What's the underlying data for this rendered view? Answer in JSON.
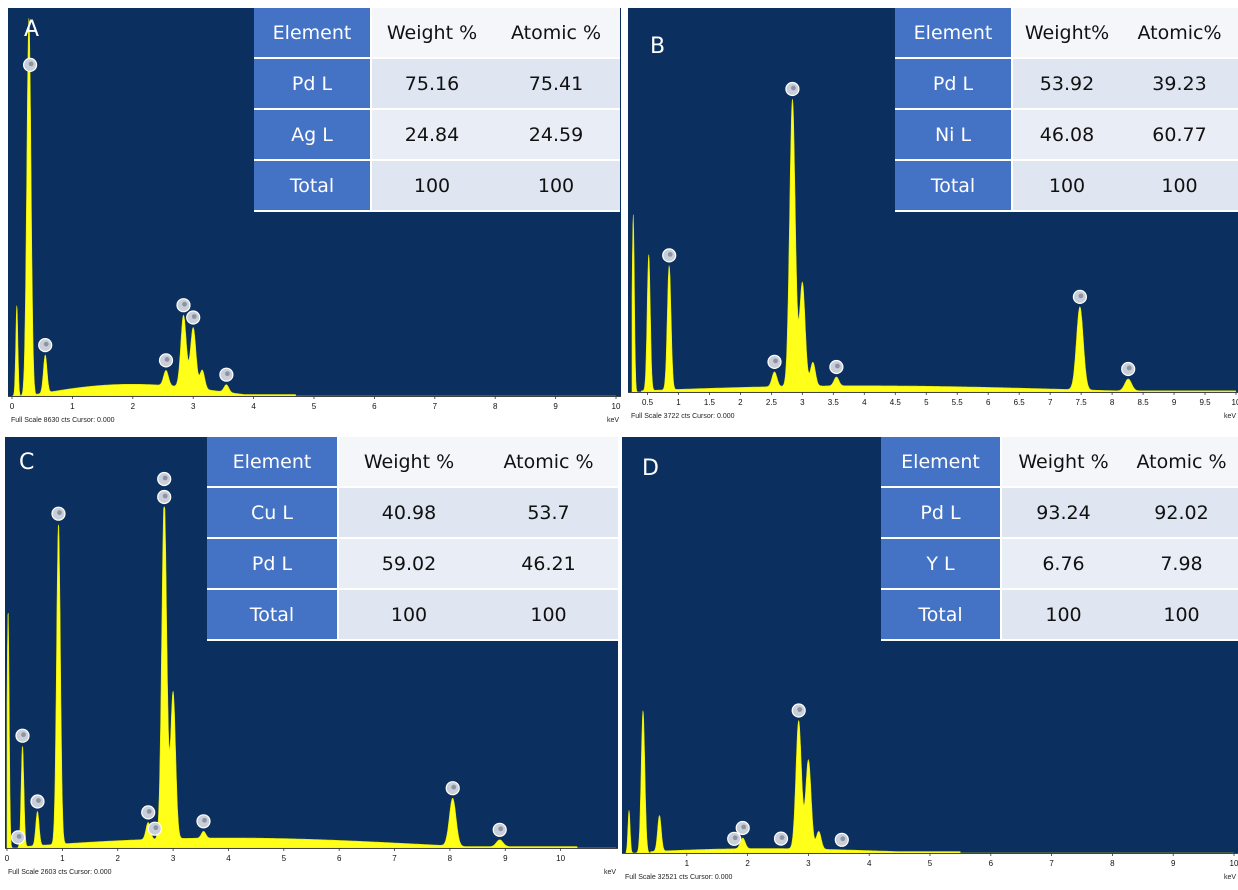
{
  "colors": {
    "spectrum_bg": "#0b2f5e",
    "peak_fill": "#ffff1a",
    "table_header": "#4472c4"
  },
  "panels": [
    {
      "letter": "A",
      "footer": "Full Scale 8630 cts Cursor: 0.000",
      "table": {
        "headers": [
          "Element",
          "Weight %",
          "Atomic %"
        ],
        "rows": [
          [
            "Pd L",
            "75.16",
            "75.41"
          ],
          [
            "Ag L",
            "24.84",
            "24.59"
          ],
          [
            "Total",
            "100",
            "100"
          ]
        ]
      }
    },
    {
      "letter": "B",
      "footer": "Full Scale 3722 cts Cursor: 0.000",
      "table": {
        "headers": [
          "Element",
          "Weight%",
          "Atomic%"
        ],
        "rows": [
          [
            "Pd L",
            "53.92",
            "39.23"
          ],
          [
            "Ni L",
            "46.08",
            "60.77"
          ],
          [
            "Total",
            "100",
            "100"
          ]
        ]
      }
    },
    {
      "letter": "C",
      "footer": "Full Scale 2603 cts Cursor: 0.000",
      "table": {
        "headers": [
          "Element",
          "Weight %",
          "Atomic %"
        ],
        "rows": [
          [
            "Cu L",
            "40.98",
            "53.7"
          ],
          [
            "Pd L",
            "59.02",
            "46.21"
          ],
          [
            "Total",
            "100",
            "100"
          ]
        ]
      }
    },
    {
      "letter": "D",
      "footer": "Full Scale 32521 cts Cursor: 0.000",
      "table": {
        "headers": [
          "Element",
          "Weight %",
          "Atomic %"
        ],
        "rows": [
          [
            "Pd L",
            "93.24",
            "92.02"
          ],
          [
            "Y L",
            "6.76",
            "7.98"
          ],
          [
            "Total",
            "100",
            "100"
          ]
        ]
      }
    }
  ],
  "chart_data": [
    {
      "type": "area",
      "panel": "A",
      "xlabel": "keV",
      "xlim": [
        0,
        10
      ],
      "ylim": [
        0,
        1
      ],
      "x_ticks": [
        "0",
        "1",
        "2",
        "3",
        "4",
        "5",
        "6",
        "7",
        "8",
        "9",
        "10"
      ],
      "continuum": {
        "start": 0.4,
        "end": 4.7,
        "level": 0.032
      },
      "peaks": [
        {
          "x": 0.08,
          "height": 0.24,
          "width": 0.018
        },
        {
          "x": 0.28,
          "height": 1.0,
          "width": 0.035
        },
        {
          "x": 0.55,
          "height": 0.1,
          "width": 0.03
        },
        {
          "x": 2.55,
          "height": 0.04,
          "width": 0.04
        },
        {
          "x": 2.84,
          "height": 0.19,
          "width": 0.045
        },
        {
          "x": 3.0,
          "height": 0.16,
          "width": 0.045
        },
        {
          "x": 3.15,
          "height": 0.05,
          "width": 0.04
        },
        {
          "x": 3.55,
          "height": 0.02,
          "width": 0.04
        }
      ],
      "markers": [
        0.3,
        0.55,
        2.55,
        2.84,
        3.0,
        3.55
      ]
    },
    {
      "type": "area",
      "panel": "B",
      "xlabel": "keV",
      "xlim": [
        0.25,
        10
      ],
      "ylim": [
        0,
        1
      ],
      "x_ticks": [
        "0.5",
        "1",
        "1.5",
        "2",
        "2.5",
        "3",
        "3.5",
        "4",
        "4.5",
        "5",
        "5.5",
        "6",
        "6.5",
        "7",
        "7.5",
        "8",
        "8.5",
        "9",
        "9.5",
        "10"
      ],
      "continuum": {
        "start": 0.4,
        "end": 10,
        "level": 0.02
      },
      "peaks": [
        {
          "x": 0.27,
          "height": 0.6,
          "width": 0.018
        },
        {
          "x": 0.52,
          "height": 0.46,
          "width": 0.025
        },
        {
          "x": 0.85,
          "height": 0.42,
          "width": 0.03
        },
        {
          "x": 2.55,
          "height": 0.05,
          "width": 0.04
        },
        {
          "x": 2.84,
          "height": 0.97,
          "width": 0.045
        },
        {
          "x": 3.0,
          "height": 0.35,
          "width": 0.045
        },
        {
          "x": 3.17,
          "height": 0.08,
          "width": 0.04
        },
        {
          "x": 3.55,
          "height": 0.03,
          "width": 0.04
        },
        {
          "x": 7.48,
          "height": 0.28,
          "width": 0.055
        },
        {
          "x": 8.26,
          "height": 0.04,
          "width": 0.055
        }
      ],
      "markers": [
        0.85,
        2.55,
        2.84,
        3.55,
        7.48,
        8.26
      ]
    },
    {
      "type": "area",
      "panel": "C",
      "xlabel": "keV",
      "xlim": [
        0,
        11
      ],
      "ylim": [
        0,
        1
      ],
      "x_ticks": [
        "0",
        "1",
        "2",
        "3",
        "4",
        "5",
        "6",
        "7",
        "8",
        "9",
        "10"
      ],
      "continuum": {
        "start": 0.3,
        "end": 10.3,
        "level": 0.03
      },
      "peaks": [
        {
          "x": 0.02,
          "height": 0.7,
          "width": 0.02
        },
        {
          "x": 0.28,
          "height": 0.3,
          "width": 0.025
        },
        {
          "x": 0.55,
          "height": 0.1,
          "width": 0.03
        },
        {
          "x": 0.93,
          "height": 0.94,
          "width": 0.035
        },
        {
          "x": 2.55,
          "height": 0.05,
          "width": 0.04
        },
        {
          "x": 2.84,
          "height": 1.0,
          "width": 0.045
        },
        {
          "x": 3.0,
          "height": 0.43,
          "width": 0.045
        },
        {
          "x": 3.55,
          "height": 0.02,
          "width": 0.04
        },
        {
          "x": 8.05,
          "height": 0.14,
          "width": 0.06
        },
        {
          "x": 8.9,
          "height": 0.02,
          "width": 0.06
        }
      ],
      "markers": [
        0.2,
        0.28,
        0.55,
        0.93,
        2.55,
        2.67,
        2.84,
        2.84,
        3.55,
        8.05,
        8.9
      ]
    },
    {
      "type": "area",
      "panel": "D",
      "xlabel": "keV",
      "xlim": [
        0,
        10
      ],
      "ylim": [
        0,
        1
      ],
      "x_ticks": [
        "1",
        "2",
        "3",
        "4",
        "5",
        "6",
        "7",
        "8",
        "9",
        "10"
      ],
      "continuum": {
        "start": 0.4,
        "end": 5.5,
        "level": 0.01
      },
      "peaks": [
        {
          "x": 0.05,
          "height": 0.12,
          "width": 0.018
        },
        {
          "x": 0.28,
          "height": 0.4,
          "width": 0.03
        },
        {
          "x": 0.55,
          "height": 0.1,
          "width": 0.03
        },
        {
          "x": 1.92,
          "height": 0.03,
          "width": 0.04
        },
        {
          "x": 2.84,
          "height": 0.36,
          "width": 0.045
        },
        {
          "x": 3.0,
          "height": 0.25,
          "width": 0.045
        },
        {
          "x": 3.17,
          "height": 0.05,
          "width": 0.04
        }
      ],
      "markers": [
        1.78,
        1.92,
        2.55,
        2.84,
        3.55
      ]
    }
  ]
}
